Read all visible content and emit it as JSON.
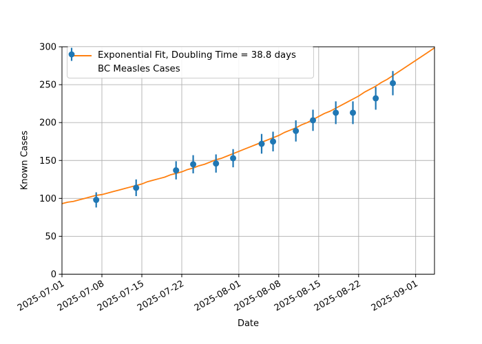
{
  "figure": {
    "background": "#ffffff"
  },
  "chart_data": {
    "type": "scatter",
    "title": "",
    "xlabel": "Date",
    "ylabel": "Known Cases",
    "grid": true,
    "x_axis": {
      "epoch": "2025-07-01",
      "tick_labels": [
        "2025-07-01",
        "2025-07-08",
        "2025-07-15",
        "2025-07-22",
        "2025-08-01",
        "2025-08-08",
        "2025-08-15",
        "2025-08-22",
        "2025-09-01"
      ],
      "tick_days": [
        0,
        7,
        14,
        21,
        31,
        38,
        45,
        52,
        62
      ],
      "range_days": [
        0,
        65.3
      ],
      "tick_label_rotation_deg": 30
    },
    "y_axis": {
      "ticks": [
        0,
        50,
        100,
        150,
        200,
        250,
        300
      ],
      "range": [
        0,
        300
      ]
    },
    "series": [
      {
        "name": "Exponential Fit, Doubling Time = 38.8 days",
        "type": "line",
        "color": "#ff7f0e",
        "model": {
          "formula": "N(t) = 93 * 2^(t / 38.8)",
          "initial_value": 93,
          "doubling_time_days": 38.8,
          "t0": "2025-07-01",
          "end_value": 299
        }
      },
      {
        "name": "BC Measles Cases",
        "type": "scatter-errorbar",
        "color": "#1f77b4",
        "points": [
          {
            "date": "2025-07-07",
            "value": 98,
            "error": 10
          },
          {
            "date": "2025-07-14",
            "value": 114,
            "error": 11
          },
          {
            "date": "2025-07-21",
            "value": 137,
            "error": 12
          },
          {
            "date": "2025-07-24",
            "value": 145,
            "error": 12
          },
          {
            "date": "2025-07-28",
            "value": 146,
            "error": 12
          },
          {
            "date": "2025-07-31",
            "value": 153,
            "error": 12
          },
          {
            "date": "2025-08-05",
            "value": 172,
            "error": 13
          },
          {
            "date": "2025-08-07",
            "value": 175,
            "error": 13
          },
          {
            "date": "2025-08-11",
            "value": 189,
            "error": 14
          },
          {
            "date": "2025-08-14",
            "value": 203,
            "error": 14
          },
          {
            "date": "2025-08-18",
            "value": 213,
            "error": 15
          },
          {
            "date": "2025-08-21",
            "value": 213,
            "error": 15
          },
          {
            "date": "2025-08-25",
            "value": 232,
            "error": 15
          },
          {
            "date": "2025-08-28",
            "value": 252,
            "error": 16
          }
        ]
      }
    ],
    "legend": {
      "location": "upper left",
      "entries": [
        "Exponential Fit, Doubling Time = 38.8 days",
        "BC Measles Cases"
      ]
    },
    "colors": {
      "fit_line": "#ff7f0e",
      "data_points": "#1f77b4",
      "grid": "#b0b0b0",
      "axis": "#000000",
      "tick_text": "#000000",
      "legend_border": "#cccccc",
      "background": "#ffffff"
    }
  }
}
